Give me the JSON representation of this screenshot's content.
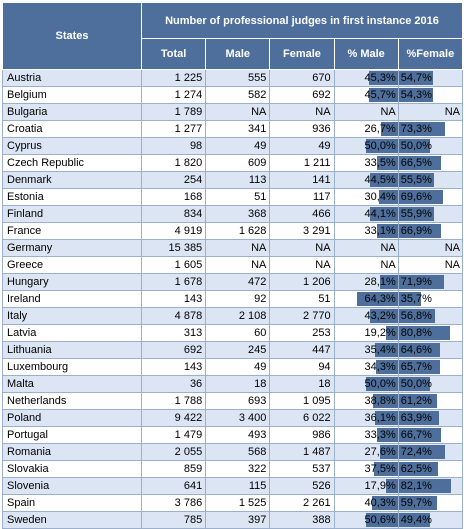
{
  "chart_data": {
    "type": "table",
    "header": {
      "row_header": "States",
      "group_title": "Number of professional judges in first instance 2016",
      "columns": [
        "Total",
        "Male",
        "Female",
        "% Male",
        "%Female"
      ]
    },
    "rows": [
      {
        "state": "Austria",
        "total": "1 225",
        "male": "555",
        "female": "670",
        "pct_male": "45,3%",
        "pct_female": "54,7%",
        "male_share": 45.3,
        "female_share": 54.7
      },
      {
        "state": "Belgium",
        "total": "1 274",
        "male": "582",
        "female": "692",
        "pct_male": "45,7%",
        "pct_female": "54,3%",
        "male_share": 45.7,
        "female_share": 54.3
      },
      {
        "state": "Bulgaria",
        "total": "1 789",
        "male": "NA",
        "female": "NA",
        "pct_male": "NA",
        "pct_female": "NA",
        "male_share": null,
        "female_share": null
      },
      {
        "state": "Croatia",
        "total": "1 277",
        "male": "341",
        "female": "936",
        "pct_male": "26,7%",
        "pct_female": "73,3%",
        "male_share": 26.7,
        "female_share": 73.3
      },
      {
        "state": "Cyprus",
        "total": "98",
        "male": "49",
        "female": "49",
        "pct_male": "50,0%",
        "pct_female": "50,0%",
        "male_share": 50.0,
        "female_share": 50.0
      },
      {
        "state": "Czech Republic",
        "total": "1 820",
        "male": "609",
        "female": "1 211",
        "pct_male": "33,5%",
        "pct_female": "66,5%",
        "male_share": 33.5,
        "female_share": 66.5
      },
      {
        "state": "Denmark",
        "total": "254",
        "male": "113",
        "female": "141",
        "pct_male": "44,5%",
        "pct_female": "55,5%",
        "male_share": 44.5,
        "female_share": 55.5
      },
      {
        "state": "Estonia",
        "total": "168",
        "male": "51",
        "female": "117",
        "pct_male": "30,4%",
        "pct_female": "69,6%",
        "male_share": 30.4,
        "female_share": 69.6
      },
      {
        "state": "Finland",
        "total": "834",
        "male": "368",
        "female": "466",
        "pct_male": "44,1%",
        "pct_female": "55,9%",
        "male_share": 44.1,
        "female_share": 55.9
      },
      {
        "state": "France",
        "total": "4 919",
        "male": "1 628",
        "female": "3 291",
        "pct_male": "33,1%",
        "pct_female": "66,9%",
        "male_share": 33.1,
        "female_share": 66.9
      },
      {
        "state": "Germany",
        "total": "15 385",
        "male": "NA",
        "female": "NA",
        "pct_male": "NA",
        "pct_female": "NA",
        "male_share": null,
        "female_share": null
      },
      {
        "state": "Greece",
        "total": "1 605",
        "male": "NA",
        "female": "NA",
        "pct_male": "NA",
        "pct_female": "NA",
        "male_share": null,
        "female_share": null
      },
      {
        "state": "Hungary",
        "total": "1 678",
        "male": "472",
        "female": "1 206",
        "pct_male": "28,1%",
        "pct_female": "71,9%",
        "male_share": 28.1,
        "female_share": 71.9
      },
      {
        "state": "Ireland",
        "total": "143",
        "male": "92",
        "female": "51",
        "pct_male": "64,3%",
        "pct_female": "35,7%",
        "male_share": 64.3,
        "female_share": 35.7
      },
      {
        "state": "Italy",
        "total": "4 878",
        "male": "2 108",
        "female": "2 770",
        "pct_male": "43,2%",
        "pct_female": "56,8%",
        "male_share": 43.2,
        "female_share": 56.8
      },
      {
        "state": "Latvia",
        "total": "313",
        "male": "60",
        "female": "253",
        "pct_male": "19,2%",
        "pct_female": "80,8%",
        "male_share": 19.2,
        "female_share": 80.8
      },
      {
        "state": "Lithuania",
        "total": "692",
        "male": "245",
        "female": "447",
        "pct_male": "35,4%",
        "pct_female": "64,6%",
        "male_share": 35.4,
        "female_share": 64.6
      },
      {
        "state": "Luxembourg",
        "total": "143",
        "male": "49",
        "female": "94",
        "pct_male": "34,3%",
        "pct_female": "65,7%",
        "male_share": 34.3,
        "female_share": 65.7
      },
      {
        "state": "Malta",
        "total": "36",
        "male": "18",
        "female": "18",
        "pct_male": "50,0%",
        "pct_female": "50,0%",
        "male_share": 50.0,
        "female_share": 50.0
      },
      {
        "state": "Netherlands",
        "total": "1 788",
        "male": "693",
        "female": "1 095",
        "pct_male": "38,8%",
        "pct_female": "61,2%",
        "male_share": 38.8,
        "female_share": 61.2
      },
      {
        "state": "Poland",
        "total": "9 422",
        "male": "3 400",
        "female": "6 022",
        "pct_male": "36,1%",
        "pct_female": "63,9%",
        "male_share": 36.1,
        "female_share": 63.9
      },
      {
        "state": "Portugal",
        "total": "1 479",
        "male": "493",
        "female": "986",
        "pct_male": "33,3%",
        "pct_female": "66,7%",
        "male_share": 33.3,
        "female_share": 66.7
      },
      {
        "state": "Romania",
        "total": "2 055",
        "male": "568",
        "female": "1 487",
        "pct_male": "27,6%",
        "pct_female": "72,4%",
        "male_share": 27.6,
        "female_share": 72.4
      },
      {
        "state": "Slovakia",
        "total": "859",
        "male": "322",
        "female": "537",
        "pct_male": "37,5%",
        "pct_female": "62,5%",
        "male_share": 37.5,
        "female_share": 62.5
      },
      {
        "state": "Slovenia",
        "total": "641",
        "male": "115",
        "female": "526",
        "pct_male": "17,9%",
        "pct_female": "82,1%",
        "male_share": 17.9,
        "female_share": 82.1
      },
      {
        "state": "Spain",
        "total": "3 786",
        "male": "1 525",
        "female": "2 261",
        "pct_male": "40,3%",
        "pct_female": "59,7%",
        "male_share": 40.3,
        "female_share": 59.7
      },
      {
        "state": "Sweden",
        "total": "785",
        "male": "397",
        "female": "388",
        "pct_male": "50,6%",
        "pct_female": "49,4%",
        "male_share": 50.6,
        "female_share": 49.4
      }
    ],
    "colors": {
      "header_bg": "#4e6f9c",
      "header_text": "#ffffff",
      "bar": "#4e6f9c",
      "band": "#dbe5f3"
    }
  }
}
